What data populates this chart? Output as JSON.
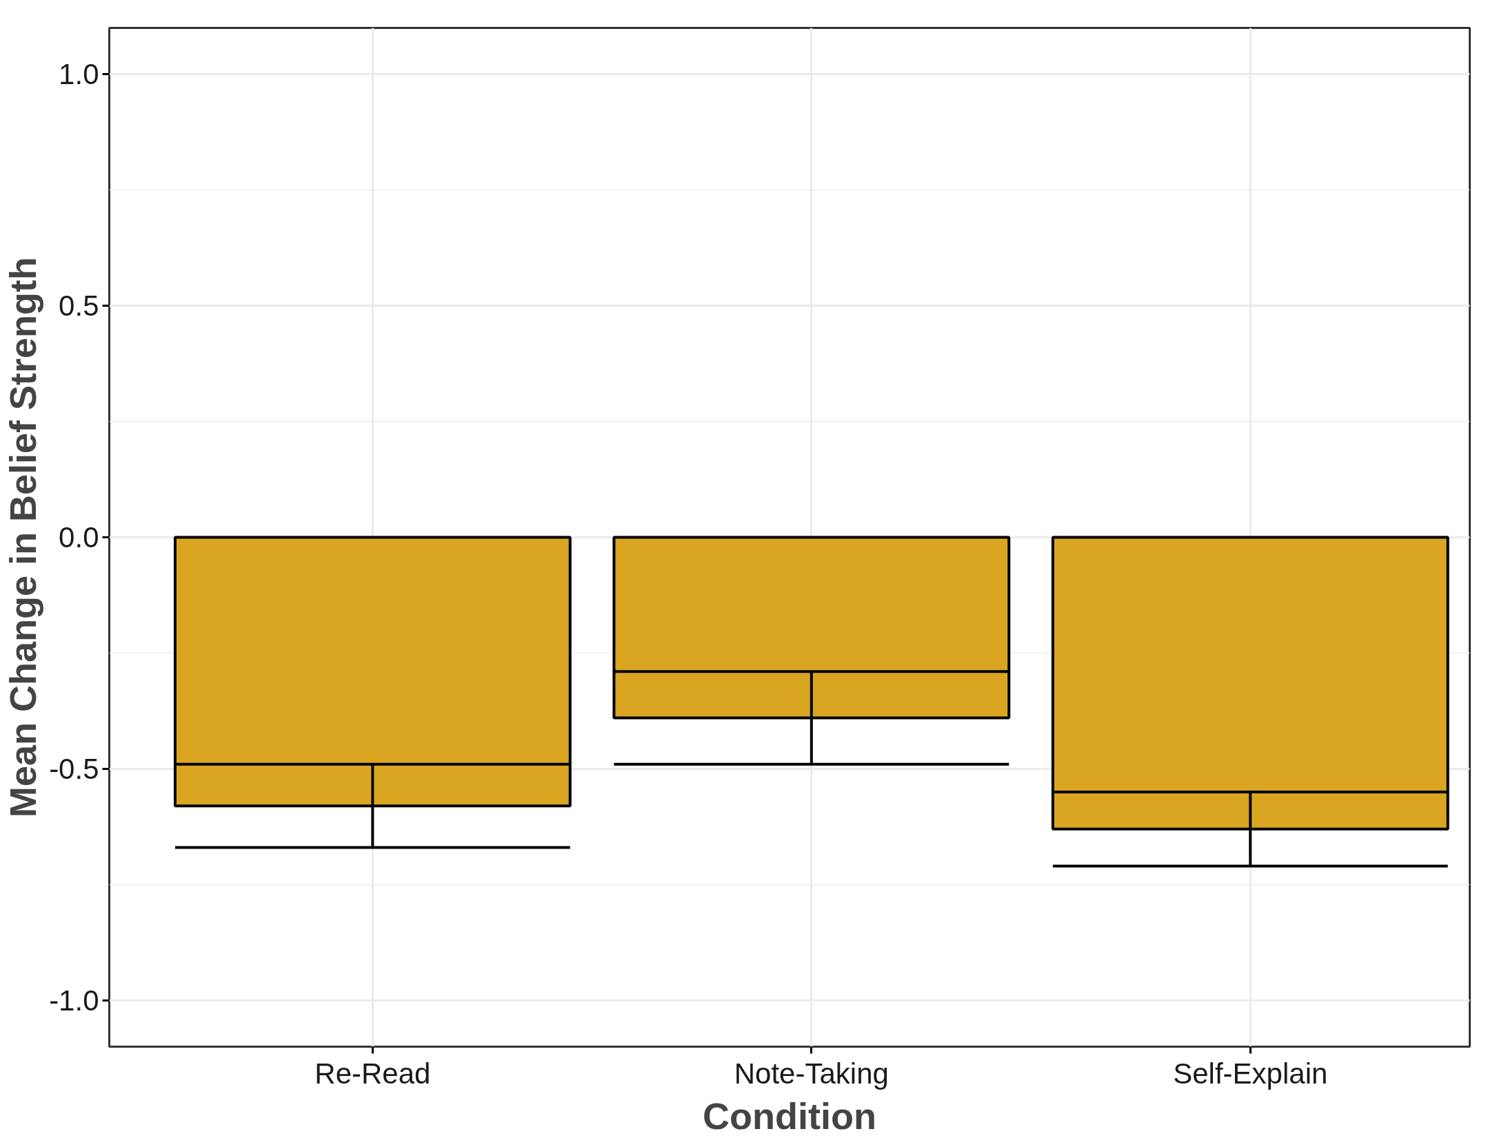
{
  "chart_data": {
    "type": "bar",
    "xlabel": "Condition",
    "ylabel": "Mean Change in Belief Strength",
    "categories": [
      "Re-Read",
      "Note-Taking",
      "Self-Explain"
    ],
    "values": [
      -0.58,
      -0.39,
      -0.63
    ],
    "errors": [
      0.09,
      0.1,
      0.08
    ],
    "color": "#daa520",
    "ylim": [
      -1.1,
      1.1
    ],
    "yticks": [
      {
        "value": -1,
        "label": "-1.0"
      },
      {
        "value": -0.5,
        "label": "-0.5"
      },
      {
        "value": 0,
        "label": "0.0"
      },
      {
        "value": 0.5,
        "label": "0.5"
      },
      {
        "value": 1,
        "label": "1.0"
      }
    ],
    "grid": true
  }
}
